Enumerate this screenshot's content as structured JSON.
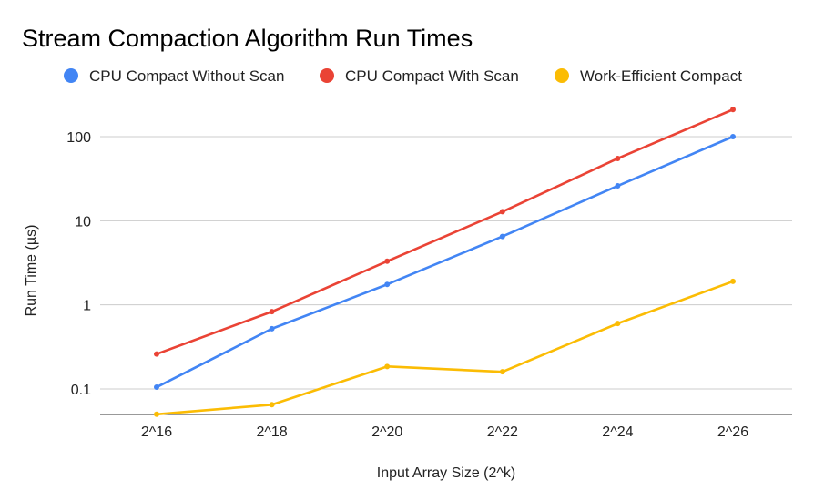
{
  "chart_data": {
    "type": "line",
    "title": "Stream Compaction Algorithm Run Times",
    "xlabel": "Input Array Size (2^k)",
    "ylabel": "Run Time (µs)",
    "x": [
      "2^16",
      "2^18",
      "2^20",
      "2^22",
      "2^24",
      "2^26"
    ],
    "y_scale": "log",
    "ylim": [
      0.05,
      200
    ],
    "yticks": [
      "0.1",
      "1",
      "10",
      "100"
    ],
    "grid": true,
    "legend_position": "top",
    "series": [
      {
        "name": "CPU Compact Without Scan",
        "color": "#4285F4",
        "values": [
          0.105,
          0.52,
          1.75,
          6.5,
          26,
          100
        ]
      },
      {
        "name": "CPU Compact With Scan",
        "color": "#EA4335",
        "values": [
          0.26,
          0.83,
          3.3,
          12.8,
          55,
          210
        ]
      },
      {
        "name": "Work-Efficient Compact",
        "color": "#FBBC04",
        "values": [
          0.05,
          0.065,
          0.185,
          0.16,
          0.6,
          1.9
        ]
      }
    ]
  }
}
